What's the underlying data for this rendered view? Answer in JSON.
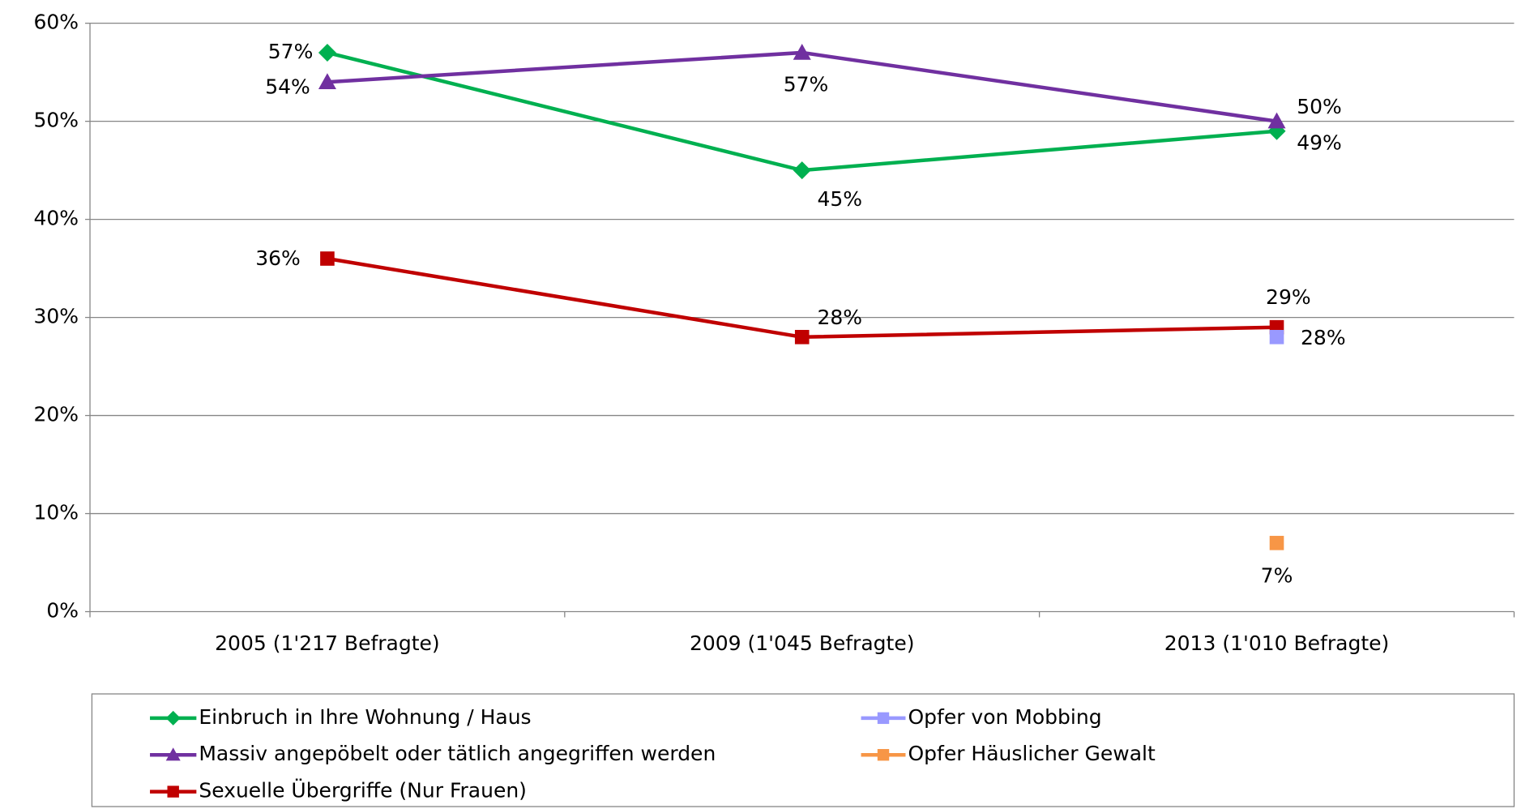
{
  "chart_data": {
    "type": "line",
    "categories": [
      "2005 (1'217 Befragte)",
      "2009 (1'045 Befragte)",
      "2013 (1'010 Befragte)"
    ],
    "series": [
      {
        "name": "Einbruch in Ihre Wohnung / Haus",
        "color": "#00b050",
        "marker": "diamond",
        "values": [
          57,
          45,
          49
        ],
        "value_labels": [
          "57%",
          "45%",
          "49%"
        ]
      },
      {
        "name": "Massiv angepöbelt oder tätlich angegriffen werden",
        "color": "#7030a0",
        "marker": "triangle",
        "values": [
          54,
          57,
          50
        ],
        "value_labels": [
          "54%",
          "57%",
          "50%"
        ]
      },
      {
        "name": "Sexuelle Übergriffe (Nur Frauen)",
        "color": "#c00000",
        "marker": "square",
        "values": [
          36,
          28,
          29
        ],
        "value_labels": [
          "36%",
          "28%",
          "29%"
        ]
      },
      {
        "name": "Opfer von Mobbing",
        "color": "#9999ff",
        "marker": "square",
        "values": [
          null,
          null,
          28
        ],
        "value_labels": [
          null,
          null,
          "28%"
        ]
      },
      {
        "name": "Opfer Häuslicher Gewalt",
        "color": "#f79646",
        "marker": "square",
        "values": [
          null,
          null,
          7
        ],
        "value_labels": [
          null,
          null,
          "7%"
        ]
      }
    ],
    "ylim": [
      0,
      60
    ],
    "yticks": [
      {
        "value": 0,
        "label": "0%"
      },
      {
        "value": 10,
        "label": "10%"
      },
      {
        "value": 20,
        "label": "20%"
      },
      {
        "value": 30,
        "label": "30%"
      },
      {
        "value": 40,
        "label": "40%"
      },
      {
        "value": 50,
        "label": "50%"
      },
      {
        "value": 60,
        "label": "60%"
      }
    ],
    "grid": true,
    "legend": "bottom"
  }
}
